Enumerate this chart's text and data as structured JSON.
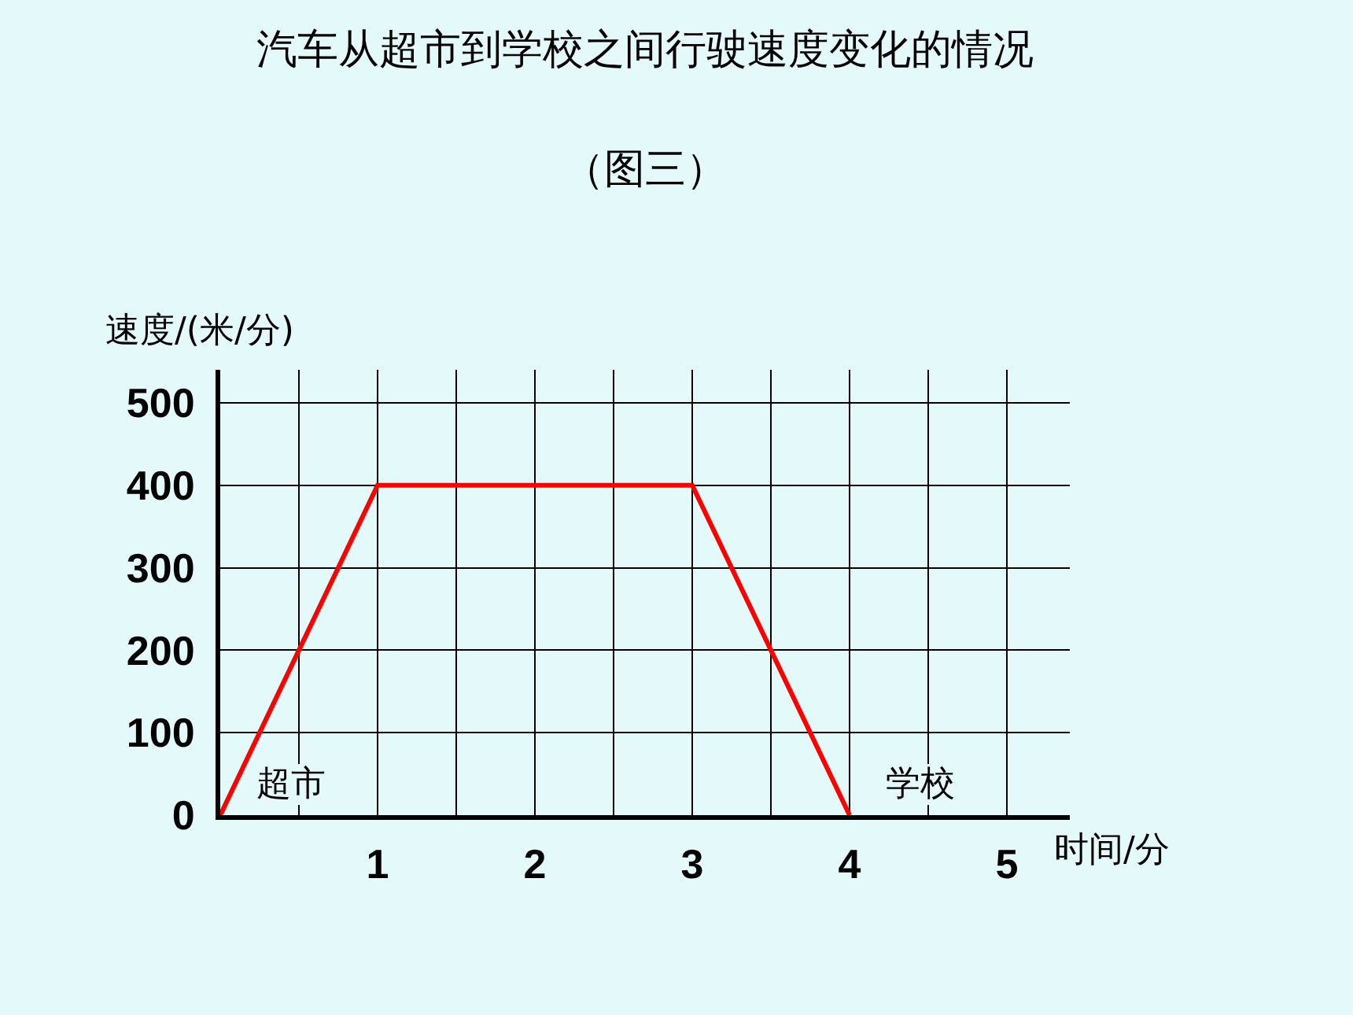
{
  "chart_data": {
    "type": "line",
    "title": "汽车从超市到学校之间行驶速度变化的情况",
    "subtitle": "（图三）",
    "xlabel": "时间/分",
    "ylabel": "速度/(米/分)",
    "x": [
      0,
      1,
      3,
      4
    ],
    "series": [
      {
        "color": "#ff0000",
        "values": [
          0,
          400,
          400,
          0
        ]
      }
    ],
    "xlim": [
      0,
      5.4
    ],
    "ylim": [
      0,
      540
    ],
    "xticks": [
      {
        "value": 0.5,
        "label": null
      },
      1,
      {
        "value": 1.5,
        "label": null
      },
      2,
      {
        "value": 2.5,
        "label": null
      },
      3,
      {
        "value": 3.5,
        "label": null
      },
      4,
      {
        "value": 4.5,
        "label": null
      },
      5
    ],
    "yticks": [
      0,
      100,
      200,
      300,
      400,
      500
    ],
    "annotations": [
      {
        "text": "超市",
        "x": 0,
        "y": 0
      },
      {
        "text": "学校",
        "x": 4,
        "y": 0
      }
    ],
    "grid": true,
    "legend": false,
    "marker": "none",
    "line_style": "solid"
  }
}
